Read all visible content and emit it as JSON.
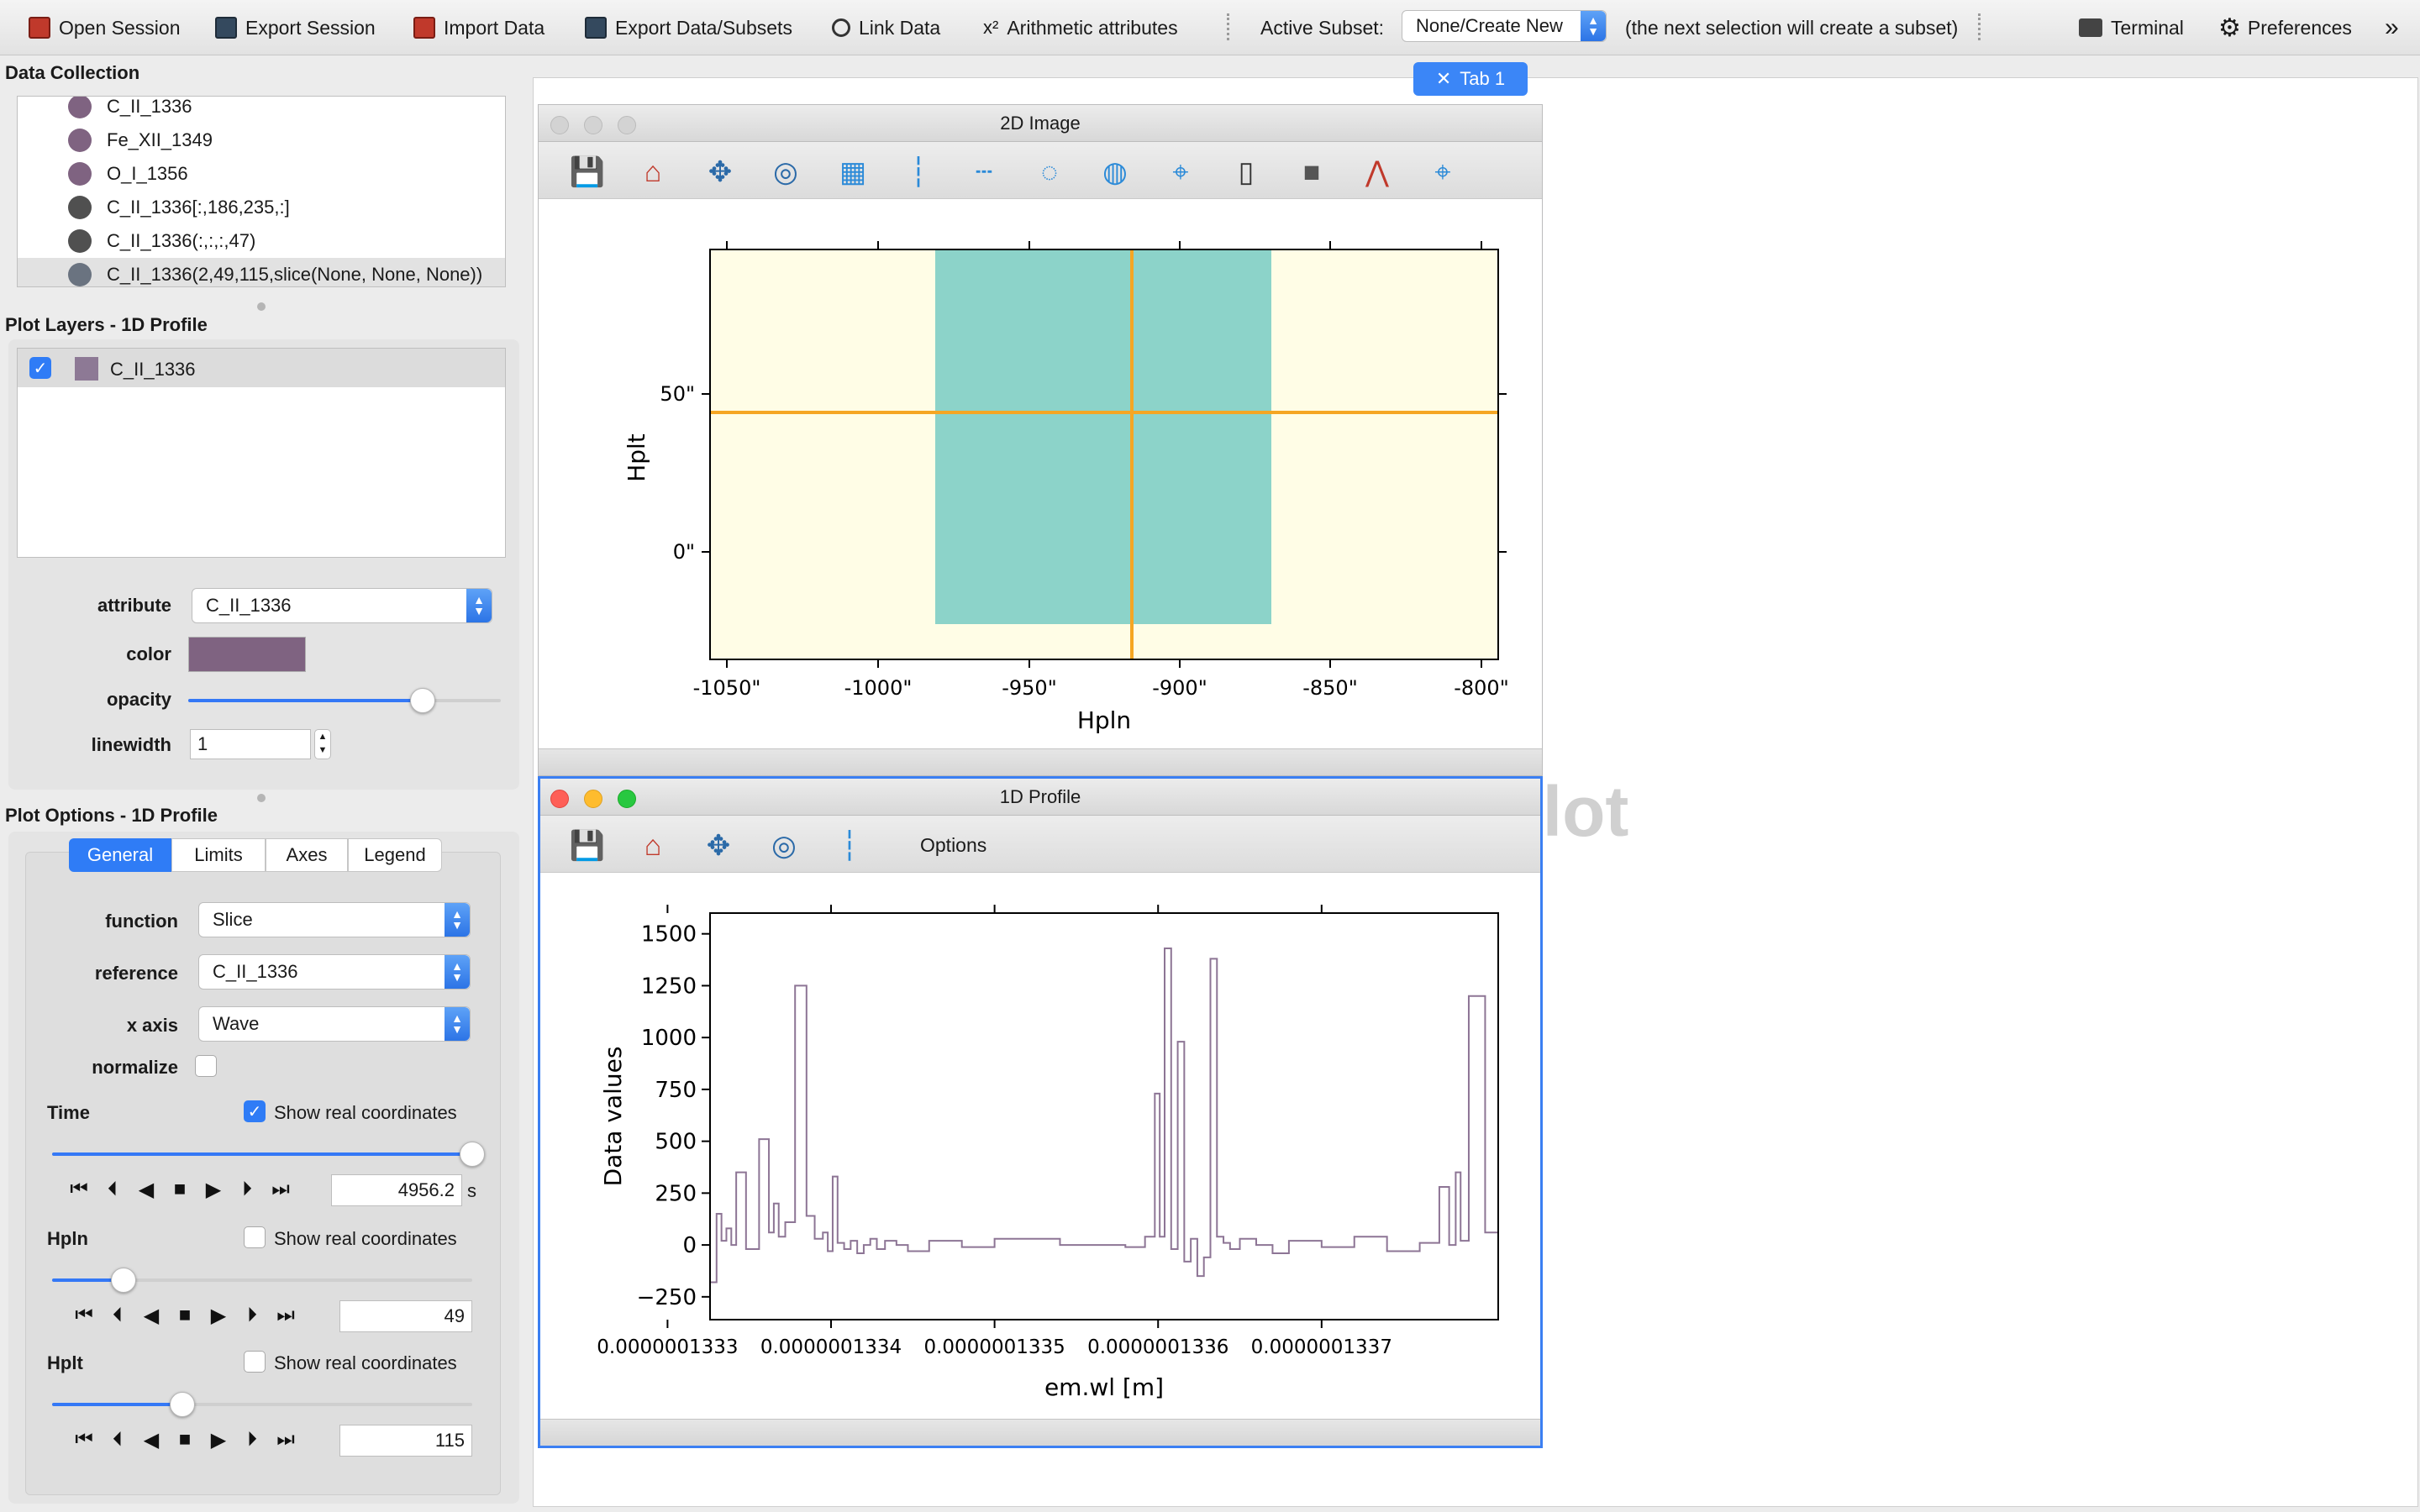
{
  "toolbar": {
    "open_session": "Open Session",
    "export_session": "Export Session",
    "import_data": "Import Data",
    "export_data": "Export Data/Subsets",
    "link_data": "Link Data",
    "arith_icon": "x²",
    "arithmetic": "Arithmetic attributes",
    "active_subset_label": "Active Subset:",
    "active_subset_value": "None/Create New",
    "subset_hint": "(the next selection will create a subset)",
    "terminal": "Terminal",
    "preferences": "Preferences",
    "overflow": "»"
  },
  "tab": {
    "close": "✕",
    "label": "Tab 1"
  },
  "watermark": "To Plot",
  "data_collection": {
    "title": "Data Collection",
    "items": [
      {
        "label": "C_II_1336",
        "color": "#7f6381"
      },
      {
        "label": "Fe_XII_1349",
        "color": "#7f6381"
      },
      {
        "label": "O_I_1356",
        "color": "#7f6381"
      },
      {
        "label": "C_II_1336[:,186,235,:]",
        "color": "#505050"
      },
      {
        "label": "C_II_1336(:,:,:,47)",
        "color": "#505050"
      },
      {
        "label": "C_II_1336(2,49,115,slice(None, None, None))",
        "color": "#6a7380"
      }
    ]
  },
  "plot_layers": {
    "title": "Plot Layers - 1D Profile",
    "layer_checked": "✓",
    "layer_label": "C_II_1336",
    "layer_color": "#8d7995",
    "attribute_label": "attribute",
    "attribute_value": "C_II_1336",
    "color_label": "color",
    "color_value": "#7f6381",
    "opacity_label": "opacity",
    "opacity": 0.75,
    "linewidth_label": "linewidth",
    "linewidth_value": "1"
  },
  "plot_options": {
    "title": "Plot Options - 1D Profile",
    "tabs": [
      "General",
      "Limits",
      "Axes",
      "Legend"
    ],
    "function_label": "function",
    "function_value": "Slice",
    "reference_label": "reference",
    "reference_value": "C_II_1336",
    "xaxis_label": "x axis",
    "xaxis_value": "Wave",
    "normalize_label": "normalize",
    "time": {
      "label": "Time",
      "show_real": "Show real coordinates",
      "checked": "✓",
      "slider": 1.0,
      "value": "4956.2",
      "unit": "s"
    },
    "hpln": {
      "label": "Hpln",
      "show_real": "Show real coordinates",
      "slider": 0.17,
      "value": "49"
    },
    "hplt": {
      "label": "Hplt",
      "show_real": "Show real coordinates",
      "slider": 0.31,
      "value": "115"
    },
    "play": [
      "⏮",
      "⏴",
      "◀",
      "■",
      "▶",
      "⏵",
      "⏭"
    ]
  },
  "win2d": {
    "title": "2D Image",
    "xlabel": "Hpln",
    "ylabel": "Hplt",
    "xticks": [
      "-1050\"",
      "-1000\"",
      "-950\"",
      "-900\"",
      "-850\"",
      "-800\""
    ],
    "yticks": [
      "50\"",
      "0\""
    ],
    "bg_color": "#fffde6",
    "data_color": "#8cd3c9",
    "crosshair_color": "#f5a623"
  },
  "win1d": {
    "title": "1D Profile",
    "options": "Options",
    "line_color": "#8d7595"
  },
  "chart_data": {
    "type": "line",
    "title": "",
    "xlabel": "em.wl [m]",
    "ylabel": "Data values",
    "xticks": [
      "0.0000001333",
      "0.0000001334",
      "0.0000001335",
      "0.0000001336",
      "0.0000001337"
    ],
    "xtick_values": [
      1.333e-07,
      1.334e-07,
      1.335e-07,
      1.336e-07,
      1.337e-07
    ],
    "xlim": [
      1.33326e-07,
      1.33808e-07
    ],
    "yticks": [
      "1500",
      "1250",
      "1000",
      "750",
      "500",
      "250",
      "0",
      "−250"
    ],
    "ytick_values": [
      1500,
      1250,
      1000,
      750,
      500,
      250,
      0,
      -250
    ],
    "ylim": [
      -360,
      1600
    ],
    "series": [
      {
        "x": [
          1.33326e-07,
          1.3333e-07,
          1.33333e-07,
          1.33336e-07,
          1.33339e-07,
          1.33342e-07,
          1.33348e-07,
          1.33356e-07,
          1.33362e-07,
          1.33365e-07,
          1.33368e-07,
          1.33372e-07,
          1.33378e-07,
          1.33385e-07,
          1.3339e-07,
          1.33395e-07,
          1.33398e-07,
          1.33401e-07,
          1.33404e-07,
          1.33408e-07,
          1.33412e-07,
          1.33416e-07,
          1.3342e-07,
          1.33424e-07,
          1.33428e-07,
          1.33433e-07,
          1.3344e-07,
          1.33447e-07,
          1.3346e-07,
          1.3348e-07,
          1.335e-07,
          1.3354e-07,
          1.3358e-07,
          1.33592e-07,
          1.33598e-07,
          1.33601e-07,
          1.33604e-07,
          1.33608e-07,
          1.33612e-07,
          1.33616e-07,
          1.3362e-07,
          1.33624e-07,
          1.33628e-07,
          1.33632e-07,
          1.33636e-07,
          1.3364e-07,
          1.33644e-07,
          1.3365e-07,
          1.3366e-07,
          1.3367e-07,
          1.3368e-07,
          1.337e-07,
          1.3372e-07,
          1.3374e-07,
          1.3376e-07,
          1.33772e-07,
          1.33778e-07,
          1.33782e-07,
          1.33785e-07,
          1.3379e-07,
          1.338e-07,
          1.33808e-07
        ],
        "y": [
          -180,
          150,
          20,
          80,
          0,
          350,
          -20,
          510,
          60,
          200,
          40,
          110,
          1250,
          140,
          30,
          60,
          -30,
          330,
          10,
          -20,
          20,
          -40,
          0,
          30,
          -20,
          20,
          0,
          -30,
          20,
          -10,
          30,
          0,
          -10,
          40,
          730,
          40,
          1430,
          -20,
          980,
          -80,
          30,
          -150,
          -60,
          1380,
          40,
          10,
          -20,
          30,
          0,
          -40,
          20,
          -10,
          40,
          -30,
          10,
          280,
          0,
          350,
          20,
          1200,
          60,
          -30
        ]
      }
    ]
  }
}
